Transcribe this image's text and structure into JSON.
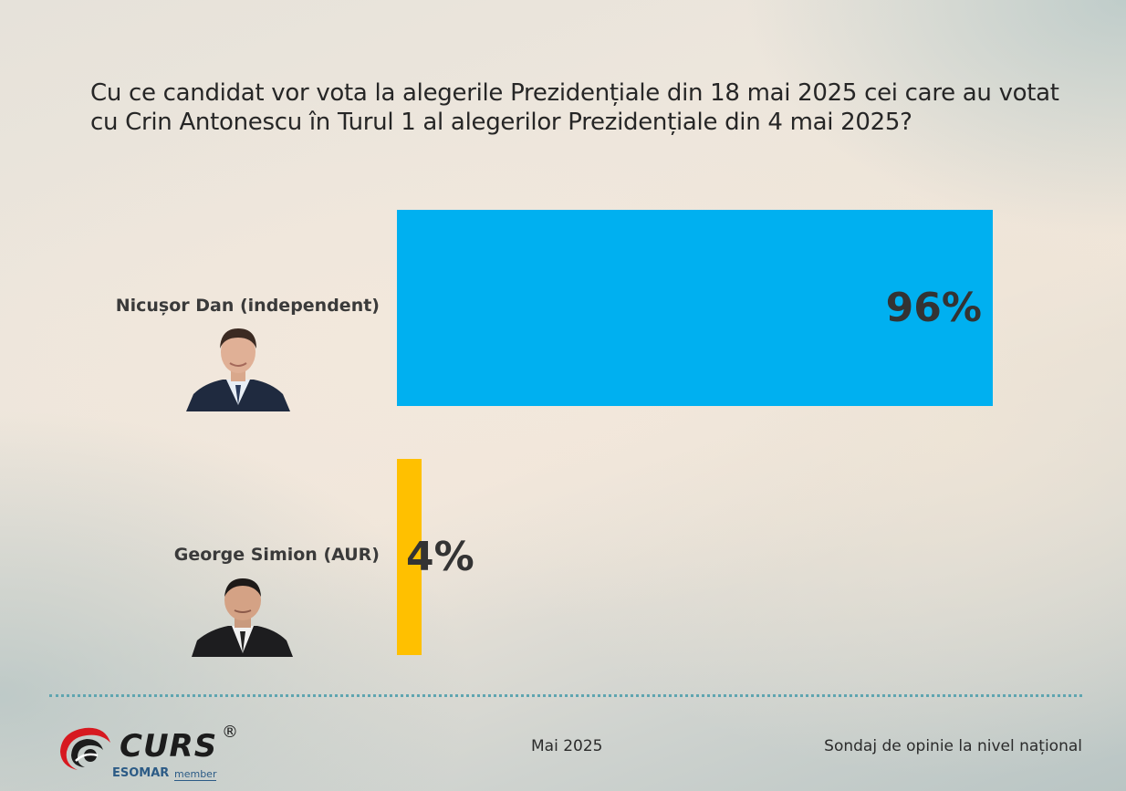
{
  "title": "Cu ce candidat vor vota la alegerile Prezidențiale din 18 mai 2025 cei care au votat cu Crin Antonescu în Turul 1 al alegerilor Prezidențiale din 4 mai 2025?",
  "chart_data": {
    "type": "bar",
    "orientation": "horizontal",
    "title": "Cu ce candidat vor vota la alegerile Prezidențiale din 18 mai 2025 cei care au votat cu Crin Antonescu în Turul 1 al alegerilor Prezidențiale din 4 mai 2025?",
    "categories": [
      "Nicușor Dan (independent)",
      "George Simion (AUR)"
    ],
    "values": [
      96,
      4
    ],
    "value_labels": [
      "96%",
      "4%"
    ],
    "colors": [
      "#00b0f0",
      "#ffc000"
    ],
    "xlim": [
      0,
      100
    ],
    "grid": false,
    "legend": "none"
  },
  "candidates": [
    {
      "name": "Nicușor Dan (independent)",
      "value_label": "96%",
      "photo_icon": "candidate-photo-icon"
    },
    {
      "name": "George Simion (AUR)",
      "value_label": "4%",
      "photo_icon": "candidate-photo-icon"
    }
  ],
  "footer": {
    "logo_text": "CURS",
    "logo_registered": "®",
    "esomar": "ESOMAR",
    "member": "member",
    "date": "Mai 2025",
    "survey": "Sondaj de opinie la nivel național",
    "divider_color": "#5fa5b0"
  }
}
